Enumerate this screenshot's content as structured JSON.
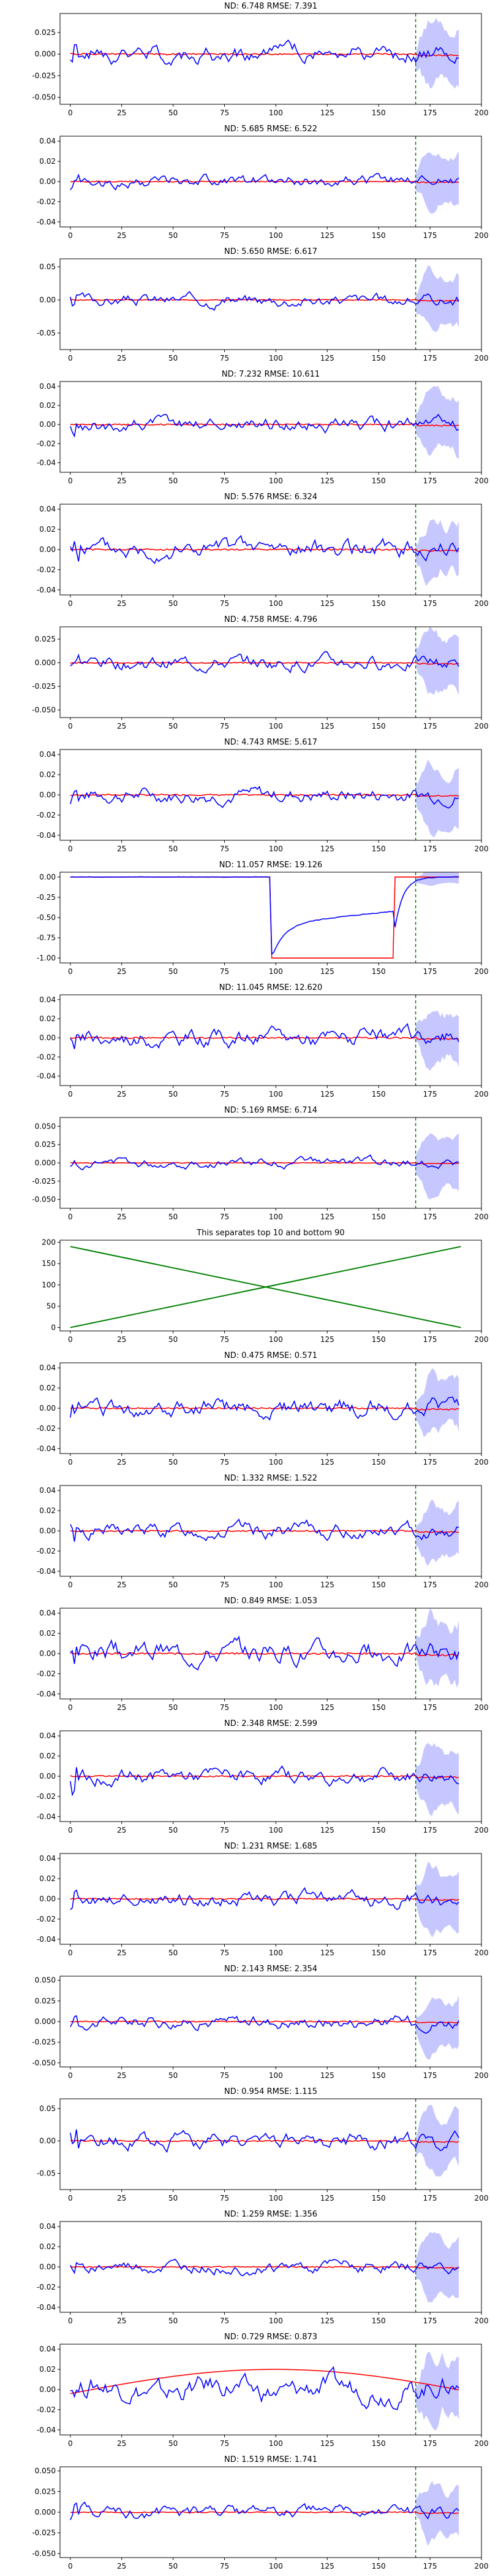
{
  "colors": {
    "forecast": "#0000ff",
    "target": "#ff0000",
    "band": "#9999ff",
    "split": "#008000",
    "guide": "#008000"
  },
  "chart_data": [
    {
      "type": "line",
      "title": "ND:  6.748 RMSE:  7.391",
      "xlim": [
        -5,
        200
      ],
      "ylim": [
        -0.058,
        0.047
      ],
      "yticks": [
        0.025,
        0.0,
        -0.025,
        -0.05
      ],
      "yfmt": 3,
      "pattern": "noise",
      "seed": 1,
      "amp": 0.007,
      "split": 168,
      "band": 0.038
    },
    {
      "type": "line",
      "title": "ND:  5.685 RMSE:  6.522",
      "xlim": [
        -5,
        200
      ],
      "ylim": [
        -0.045,
        0.045
      ],
      "yticks": [
        0.04,
        0.02,
        0.0,
        -0.02,
        -0.04
      ],
      "yfmt": 2,
      "pattern": "noise",
      "seed": 2,
      "amp": 0.004,
      "split": 168,
      "band": 0.03
    },
    {
      "type": "line",
      "title": "ND:  5.650 RMSE:  6.617",
      "xlim": [
        -5,
        200
      ],
      "ylim": [
        -0.075,
        0.062
      ],
      "yticks": [
        0.05,
        0.0,
        -0.05
      ],
      "yfmt": 2,
      "pattern": "noise",
      "seed": 3,
      "amp": 0.006,
      "split": 168,
      "band": 0.045
    },
    {
      "type": "line",
      "title": "ND:  7.232 RMSE:  10.611",
      "xlim": [
        -5,
        200
      ],
      "ylim": [
        -0.05,
        0.045
      ],
      "yticks": [
        0.04,
        0.02,
        0.0,
        -0.02,
        -0.04
      ],
      "yfmt": 2,
      "pattern": "noise",
      "seed": 4,
      "amp": 0.005,
      "split": 168,
      "band": 0.035
    },
    {
      "type": "line",
      "title": "ND:  5.576 RMSE:  6.324",
      "xlim": [
        -5,
        200
      ],
      "ylim": [
        -0.045,
        0.045
      ],
      "yticks": [
        0.04,
        0.02,
        0.0,
        -0.02,
        -0.04
      ],
      "yfmt": 2,
      "pattern": "noise",
      "seed": 5,
      "amp": 0.006,
      "split": 168,
      "band": 0.03
    },
    {
      "type": "line",
      "title": "ND:  4.758 RMSE:  4.796",
      "xlim": [
        -5,
        200
      ],
      "ylim": [
        -0.058,
        0.038
      ],
      "yticks": [
        0.025,
        0.0,
        -0.025,
        -0.05
      ],
      "yfmt": 3,
      "pattern": "noise",
      "seed": 6,
      "amp": 0.005,
      "split": 168,
      "band": 0.035
    },
    {
      "type": "line",
      "title": "ND:  4.743 RMSE:  5.617",
      "xlim": [
        -5,
        200
      ],
      "ylim": [
        -0.045,
        0.045
      ],
      "yticks": [
        0.04,
        0.02,
        0.0,
        -0.02,
        -0.04
      ],
      "yfmt": 2,
      "pattern": "noise",
      "seed": 7,
      "amp": 0.005,
      "split": 168,
      "band": 0.035
    },
    {
      "type": "line",
      "title": "ND:  11.057 RMSE:  19.126",
      "xlim": [
        -5,
        200
      ],
      "ylim": [
        -1.06,
        0.06
      ],
      "yticks": [
        0.0,
        -0.25,
        -0.5,
        -0.75,
        -1.0
      ],
      "yfmt": 2,
      "pattern": "step",
      "seed": 8,
      "amp": 0.01,
      "split": 168,
      "band": 0.1
    },
    {
      "type": "line",
      "title": "ND:  11.045 RMSE:  12.620",
      "xlim": [
        -5,
        200
      ],
      "ylim": [
        -0.05,
        0.045
      ],
      "yticks": [
        0.04,
        0.02,
        0.0,
        -0.02,
        -0.04
      ],
      "yfmt": 2,
      "pattern": "noise",
      "seed": 9,
      "amp": 0.006,
      "split": 168,
      "band": 0.03
    },
    {
      "type": "line",
      "title": "ND:  5.169 RMSE:  6.714",
      "xlim": [
        -5,
        200
      ],
      "ylim": [
        -0.062,
        0.062
      ],
      "yticks": [
        0.05,
        0.025,
        0.0,
        -0.025,
        -0.05
      ],
      "yfmt": 3,
      "pattern": "noise",
      "seed": 10,
      "amp": 0.004,
      "split": 168,
      "band": 0.045
    },
    {
      "type": "line",
      "title": "This separates top 10 and bottom 90",
      "xlim": [
        -5,
        200
      ],
      "ylim": [
        -8,
        205
      ],
      "yticks": [
        200,
        150,
        100,
        50,
        0
      ],
      "yfmt": 0,
      "pattern": "cross"
    },
    {
      "type": "line",
      "title": "ND:  0.475 RMSE:  0.571",
      "xlim": [
        -5,
        200
      ],
      "ylim": [
        -0.045,
        0.045
      ],
      "yticks": [
        0.04,
        0.02,
        0.0,
        -0.02,
        -0.04
      ],
      "yfmt": 2,
      "pattern": "noise",
      "seed": 12,
      "amp": 0.006,
      "split": 168,
      "band": 0.03
    },
    {
      "type": "line",
      "title": "ND:  1.332 RMSE:  1.522",
      "xlim": [
        -5,
        200
      ],
      "ylim": [
        -0.045,
        0.045
      ],
      "yticks": [
        0.04,
        0.02,
        0.0,
        -0.02,
        -0.04
      ],
      "yfmt": 2,
      "pattern": "noise",
      "seed": 13,
      "amp": 0.005,
      "split": 168,
      "band": 0.03
    },
    {
      "type": "line",
      "title": "ND:  0.849 RMSE:  1.053",
      "xlim": [
        -5,
        200
      ],
      "ylim": [
        -0.045,
        0.045
      ],
      "yticks": [
        0.04,
        0.02,
        0.0,
        -0.02,
        -0.04
      ],
      "yfmt": 2,
      "pattern": "noise",
      "seed": 14,
      "amp": 0.007,
      "split": 168,
      "band": 0.035
    },
    {
      "type": "line",
      "title": "ND:  2.348 RMSE:  2.599",
      "xlim": [
        -5,
        200
      ],
      "ylim": [
        -0.045,
        0.045
      ],
      "yticks": [
        0.04,
        0.02,
        0.0,
        -0.02,
        -0.04
      ],
      "yfmt": 2,
      "pattern": "noise",
      "seed": 15,
      "amp": 0.005,
      "split": 168,
      "band": 0.035
    },
    {
      "type": "line",
      "title": "ND:  1.231 RMSE:  1.685",
      "xlim": [
        -5,
        200
      ],
      "ylim": [
        -0.045,
        0.045
      ],
      "yticks": [
        0.04,
        0.02,
        0.0,
        -0.02,
        -0.04
      ],
      "yfmt": 2,
      "pattern": "noise",
      "seed": 16,
      "amp": 0.005,
      "split": 168,
      "band": 0.035
    },
    {
      "type": "line",
      "title": "ND:  2.143 RMSE:  2.354",
      "xlim": [
        -5,
        200
      ],
      "ylim": [
        -0.055,
        0.055
      ],
      "yticks": [
        0.05,
        0.025,
        0.0,
        -0.025,
        -0.05
      ],
      "yfmt": 3,
      "pattern": "noise",
      "seed": 17,
      "amp": 0.005,
      "split": 168,
      "band": 0.035
    },
    {
      "type": "line",
      "title": "ND:  0.954 RMSE:  1.115",
      "xlim": [
        -5,
        200
      ],
      "ylim": [
        -0.075,
        0.065
      ],
      "yticks": [
        0.05,
        0.0,
        -0.05
      ],
      "yfmt": 2,
      "pattern": "noise",
      "seed": 18,
      "amp": 0.008,
      "split": 168,
      "band": 0.05
    },
    {
      "type": "line",
      "title": "ND:  1.259 RMSE:  1.356",
      "xlim": [
        -5,
        200
      ],
      "ylim": [
        -0.045,
        0.045
      ],
      "yticks": [
        0.04,
        0.02,
        0.0,
        -0.02,
        -0.04
      ],
      "yfmt": 2,
      "pattern": "noise",
      "seed": 19,
      "amp": 0.004,
      "split": 168,
      "band": 0.035
    },
    {
      "type": "line",
      "title": "ND:  0.729 RMSE:  0.873",
      "xlim": [
        -5,
        200
      ],
      "ylim": [
        -0.045,
        0.045
      ],
      "yticks": [
        0.04,
        0.02,
        0.0,
        -0.02,
        -0.04
      ],
      "yfmt": 2,
      "pattern": "arch",
      "seed": 20,
      "amp": 0.006,
      "split": 168,
      "band": 0.035
    },
    {
      "type": "line",
      "title": "ND:  1.519 RMSE:  1.741",
      "xlim": [
        -5,
        200
      ],
      "ylim": [
        -0.055,
        0.055
      ],
      "yticks": [
        0.05,
        0.025,
        0.0,
        -0.025,
        -0.05
      ],
      "yfmt": 3,
      "pattern": "noise",
      "seed": 21,
      "amp": 0.005,
      "split": 168,
      "band": 0.035
    }
  ],
  "x_ticks": [
    0,
    25,
    50,
    75,
    100,
    125,
    150,
    175,
    200
  ]
}
